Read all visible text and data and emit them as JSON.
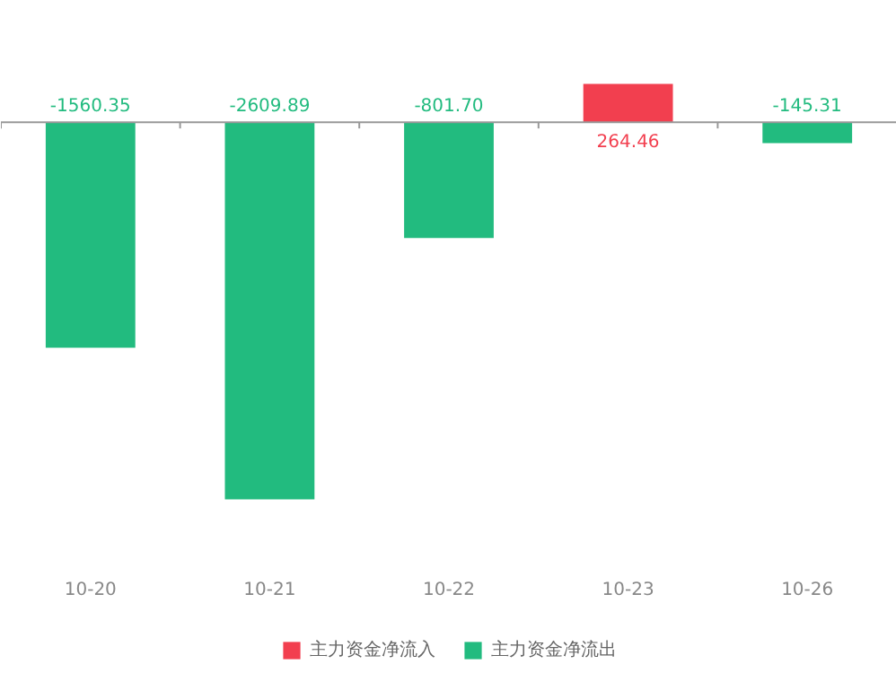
{
  "chart_data": {
    "type": "bar",
    "categories": [
      "10-20",
      "10-21",
      "10-22",
      "10-23",
      "10-26"
    ],
    "series": [
      {
        "name": "主力资金净流入",
        "color": "#f23f4f",
        "values": [
          null,
          null,
          null,
          264.46,
          null
        ],
        "value_labels": [
          null,
          null,
          null,
          "264.46",
          null
        ]
      },
      {
        "name": "主力资金净流出",
        "color": "#22bb7f",
        "values": [
          -1560.35,
          -2609.89,
          -801.7,
          null,
          -145.31
        ],
        "value_labels": [
          "-1560.35",
          "-2609.89",
          "-801.70",
          null,
          "-145.31"
        ]
      }
    ],
    "legend": "bottom"
  }
}
